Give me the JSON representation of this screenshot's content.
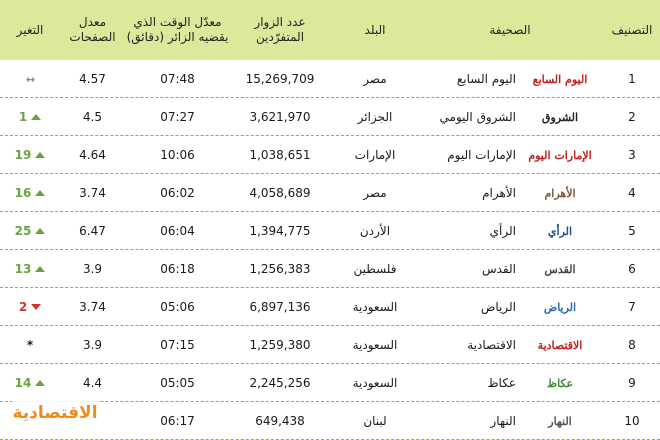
{
  "headers": {
    "rank": "التصنيف",
    "paper": "الصحيفة",
    "country": "البلد",
    "visitors": "عدد الزوار\nالمتفرّدين",
    "time": "معدّل الوقت الذي\nيقضيه الزائر (دقائق)",
    "pages": "معدل\nالصفحات",
    "change": "التغير"
  },
  "rows": [
    {
      "rank": "1",
      "logo": "اليوم السابع",
      "paper": "اليوم السابع",
      "country": "مصر",
      "visitors": "15,269,709",
      "time": "07:48",
      "pages": "4.57",
      "change_value": "",
      "change_dir": "same",
      "change_symbol": "↔"
    },
    {
      "rank": "2",
      "logo": "الشروق",
      "paper": "الشروق اليومي",
      "country": "الجزائر",
      "visitors": "3,621,970",
      "time": "07:27",
      "pages": "4.5",
      "change_value": "1",
      "change_dir": "up",
      "change_symbol": ""
    },
    {
      "rank": "3",
      "logo": "الإمارات اليوم",
      "paper": "الإمارات اليوم",
      "country": "الإمارات",
      "visitors": "1,038,651",
      "time": "10:06",
      "pages": "4.64",
      "change_value": "19",
      "change_dir": "up",
      "change_symbol": ""
    },
    {
      "rank": "4",
      "logo": "الأهرام",
      "paper": "الأهرام",
      "country": "مصر",
      "visitors": "4,058,689",
      "time": "06:02",
      "pages": "3.74",
      "change_value": "16",
      "change_dir": "up",
      "change_symbol": ""
    },
    {
      "rank": "5",
      "logo": "الرأي",
      "paper": "الرأي",
      "country": "الأردن",
      "visitors": "1,394,775",
      "time": "06:04",
      "pages": "6.47",
      "change_value": "25",
      "change_dir": "up",
      "change_symbol": ""
    },
    {
      "rank": "6",
      "logo": "القدس",
      "paper": "القدس",
      "country": "فلسطين",
      "visitors": "1,256,383",
      "time": "06:18",
      "pages": "3.9",
      "change_value": "13",
      "change_dir": "up",
      "change_symbol": ""
    },
    {
      "rank": "7",
      "logo": "الرياض",
      "paper": "الرياض",
      "country": "السعودية",
      "visitors": "6,897,136",
      "time": "05:06",
      "pages": "3.74",
      "change_value": "2",
      "change_dir": "down",
      "change_symbol": ""
    },
    {
      "rank": "8",
      "logo": "الاقتصادية",
      "paper": "الاقتصادية",
      "country": "السعودية",
      "visitors": "1,259,380",
      "time": "07:15",
      "pages": "3.9",
      "change_value": "",
      "change_dir": "star",
      "change_symbol": "*"
    },
    {
      "rank": "9",
      "logo": "عكاظ",
      "paper": "عكاظ",
      "country": "السعودية",
      "visitors": "2,245,256",
      "time": "05:05",
      "pages": "4.4",
      "change_value": "14",
      "change_dir": "up",
      "change_symbol": ""
    },
    {
      "rank": "10",
      "logo": "النهار",
      "paper": "النهار",
      "country": "لبنان",
      "visitors": "649,438",
      "time": "06:17",
      "pages": "",
      "change_value": "",
      "change_dir": "none",
      "change_symbol": ""
    }
  ],
  "logo_colors": [
    "#c0201e",
    "#222222",
    "#c0201e",
    "#7a5a3a",
    "#1f4e8c",
    "#444444",
    "#2a6aa8",
    "#c0201e",
    "#3b8a3b",
    "#555555"
  ],
  "brand": "الاقتصادية",
  "colors": {
    "header_bg": "#dde99a",
    "row_divider": "#8fb04a",
    "up": "#6aa341",
    "down": "#d6322a",
    "brand": "#f28b1b"
  }
}
